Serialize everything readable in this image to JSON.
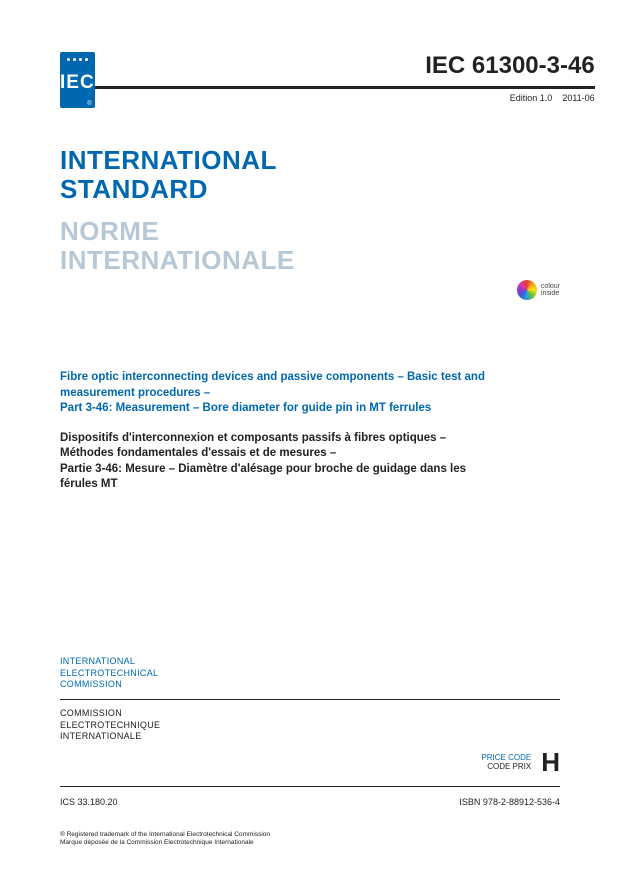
{
  "logo": {
    "label": "IEC",
    "reg": "®"
  },
  "standard_number": "IEC 61300-3-46",
  "edition": {
    "label": "Edition 1.0",
    "date": "2011-06"
  },
  "title_en_line1": "INTERNATIONAL",
  "title_en_line2": "STANDARD",
  "title_fr_line1": "NORME",
  "title_fr_line2": "INTERNATIONALE",
  "colour_inside_line1": "colour",
  "colour_inside_line2": "inside",
  "desc_en_line1": "Fibre optic interconnecting devices and passive components – Basic test and",
  "desc_en_line2": "measurement procedures –",
  "desc_en_line3": "Part 3-46: Measurement – Bore diameter for guide pin in MT ferrules",
  "desc_fr_line1": "Dispositifs d'interconnexion et composants passifs à fibres optiques –",
  "desc_fr_line2": "Méthodes fondamentales d'essais et de mesures –",
  "desc_fr_line3": "Partie 3-46: Mesure – Diamètre d'alésage pour broche de guidage dans les",
  "desc_fr_line4": "férules MT",
  "org_en_line1": "INTERNATIONAL",
  "org_en_line2": "ELECTROTECHNICAL",
  "org_en_line3": "COMMISSION",
  "org_fr_line1": "COMMISSION",
  "org_fr_line2": "ELECTROTECHNIQUE",
  "org_fr_line3": "INTERNATIONALE",
  "price_code_en": "PRICE CODE",
  "price_code_fr": "CODE PRIX",
  "price_letter": "H",
  "ics": "ICS 33.180.20",
  "isbn": "ISBN 978-2-88912-536-4",
  "trademark_line1": "® Registered trademark of the International Electrotechnical Commission",
  "trademark_line2": "Marque déposée de la Commission Electrotechnique Internationale"
}
